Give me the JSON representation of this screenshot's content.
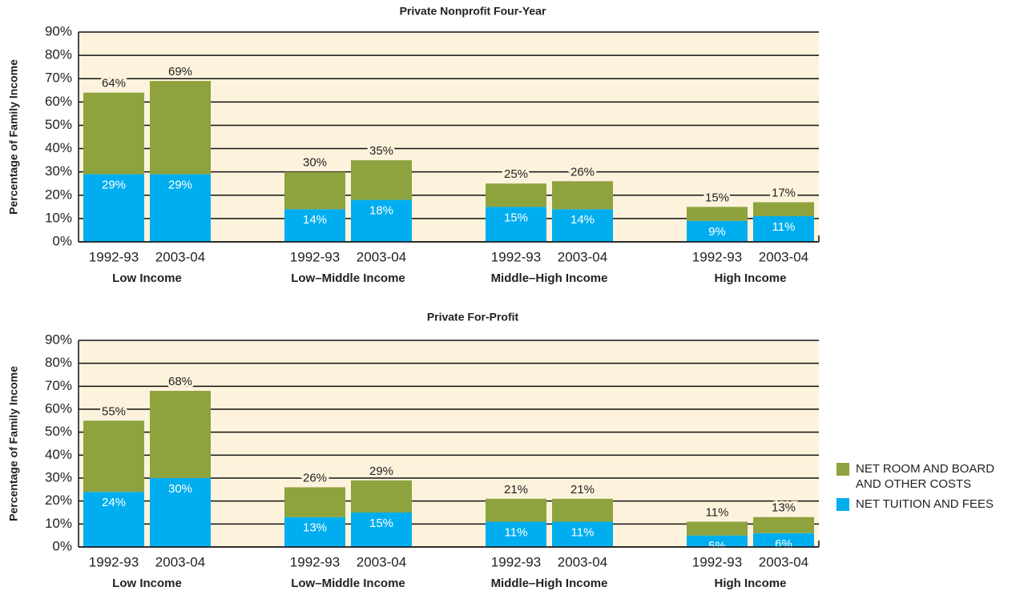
{
  "chart_data": [
    {
      "type": "bar",
      "stacked": true,
      "title": "Private Nonprofit Four-Year",
      "ylabel": "Percentage of Family Income",
      "categories": [
        "1992-93",
        "2003-04",
        "1992-93",
        "2003-04",
        "1992-93",
        "2003-04",
        "1992-93",
        "2003-04"
      ],
      "groups": [
        "Low Income",
        "Low–Middle Income",
        "Middle–High Income",
        "High Income"
      ],
      "series": [
        {
          "color": "#00aeef",
          "values": [
            29,
            29,
            14,
            18,
            15,
            14,
            9,
            11
          ],
          "value_labels": [
            "29%",
            "29%",
            "14%",
            "18%",
            "15%",
            "14%",
            "9%",
            "11%"
          ]
        },
        {
          "color": "#8ea23e",
          "values": [
            35,
            40,
            16,
            17,
            10,
            12,
            6,
            6
          ]
        }
      ],
      "totals": [
        64,
        69,
        30,
        35,
        25,
        26,
        15,
        17
      ],
      "total_labels": [
        "64%",
        "69%",
        "30%",
        "35%",
        "25%",
        "26%",
        "15%",
        "17%"
      ],
      "ylim": [
        0,
        90
      ],
      "yticks": [
        {
          "value": 0,
          "label": "0%"
        },
        {
          "value": 10,
          "label": "10%"
        },
        {
          "value": 20,
          "label": "20%"
        },
        {
          "value": 30,
          "label": "30%"
        },
        {
          "value": 40,
          "label": "40%"
        },
        {
          "value": 50,
          "label": "50%"
        },
        {
          "value": 60,
          "label": "60%"
        },
        {
          "value": 70,
          "label": "70%"
        },
        {
          "value": 80,
          "label": "80%"
        },
        {
          "value": 90,
          "label": "90%"
        }
      ],
      "grid": true
    },
    {
      "type": "bar",
      "stacked": true,
      "title": "Private For-Profit",
      "ylabel": "Percentage of Family Income",
      "categories": [
        "1992-93",
        "2003-04",
        "1992-93",
        "2003-04",
        "1992-93",
        "2003-04",
        "1992-93",
        "2003-04"
      ],
      "groups": [
        "Low Income",
        "Low–Middle Income",
        "Middle–High Income",
        "High Income"
      ],
      "series": [
        {
          "name": "NET TUITION AND FEES",
          "color": "#00aeef",
          "values": [
            24,
            30,
            13,
            15,
            11,
            11,
            5,
            6
          ],
          "value_labels": [
            "24%",
            "30%",
            "13%",
            "15%",
            "11%",
            "11%",
            "5%",
            "6%"
          ]
        },
        {
          "name": "NET ROOM AND BOARD AND OTHER COSTS",
          "color": "#8ea23e",
          "values": [
            31,
            38,
            13,
            14,
            10,
            10,
            6,
            7
          ]
        }
      ],
      "totals": [
        55,
        68,
        26,
        29,
        21,
        21,
        11,
        13
      ],
      "total_labels": [
        "55%",
        "68%",
        "26%",
        "29%",
        "21%",
        "21%",
        "11%",
        "13%"
      ],
      "ylim": [
        0,
        90
      ],
      "yticks": [
        {
          "value": 0,
          "label": "0%"
        },
        {
          "value": 10,
          "label": "10%"
        },
        {
          "value": 20,
          "label": "20%"
        },
        {
          "value": 30,
          "label": "30%"
        },
        {
          "value": 40,
          "label": "40%"
        },
        {
          "value": 50,
          "label": "50%"
        },
        {
          "value": 60,
          "label": "60%"
        },
        {
          "value": 70,
          "label": "70%"
        },
        {
          "value": 80,
          "label": "80%"
        },
        {
          "value": 90,
          "label": "90%"
        }
      ],
      "grid": true
    }
  ]
}
